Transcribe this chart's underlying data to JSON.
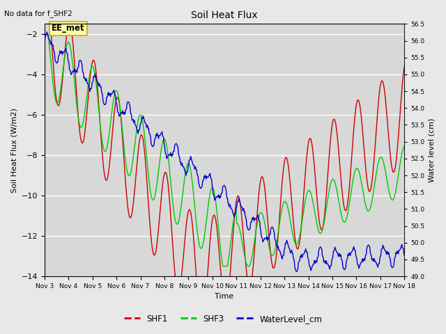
{
  "title": "Soil Heat Flux",
  "top_left_note": "No data for f_SHF2",
  "ylabel_left": "Soil Heat Flux (W/m2)",
  "ylabel_right": "Water level (cm)",
  "xlabel": "Time",
  "annotation_box": "EE_met",
  "ylim_left": [
    -14,
    -1.5
  ],
  "ylim_right": [
    49.0,
    56.5
  ],
  "x_ticks": [
    "Nov 3",
    "Nov 4",
    "Nov 5",
    "Nov 6",
    "Nov 7",
    "Nov 8",
    "Nov 9",
    "Nov 10",
    "Nov 11",
    "Nov 12",
    "Nov 13",
    "Nov 14",
    "Nov 15",
    "Nov 16",
    "Nov 17",
    "Nov 18"
  ],
  "fig_bg_color": "#e8e8e8",
  "plot_bg_color": "#d8d8d8",
  "grid_color": "#ffffff",
  "shf1_color": "#cc0000",
  "shf3_color": "#00cc00",
  "water_color": "#0000cc",
  "annot_facecolor": "#ffffaa",
  "annot_edgecolor": "#ccaa00"
}
